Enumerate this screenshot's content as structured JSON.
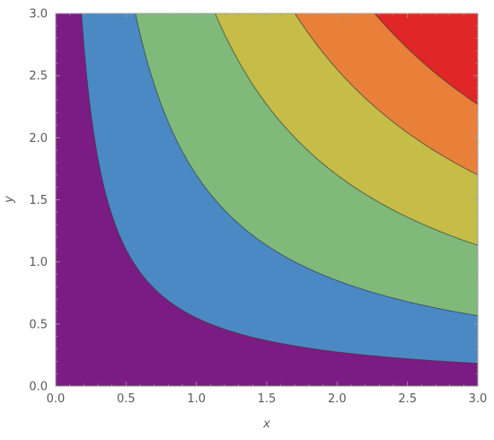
{
  "chart_data": {
    "type": "contour",
    "function": "x*y",
    "xlabel": "x",
    "ylabel": "y",
    "xlim": [
      0,
      3
    ],
    "ylim": [
      0,
      3
    ],
    "x_ticks": [
      "0.0",
      "0.5",
      "1.0",
      "1.5",
      "2.0",
      "2.5",
      "3.0"
    ],
    "y_ticks": [
      "0.0",
      "0.5",
      "1.0",
      "1.5",
      "2.0",
      "2.5",
      "3.0"
    ],
    "contour_levels": [
      0.55,
      1.7,
      3.4,
      5.1,
      6.8
    ],
    "band_colors": [
      "#7a1c84",
      "#4a89c4",
      "#7fba7b",
      "#c6bd48",
      "#e8803a",
      "#e02626"
    ],
    "grid": false,
    "frame_color": "#a0a0a0"
  }
}
